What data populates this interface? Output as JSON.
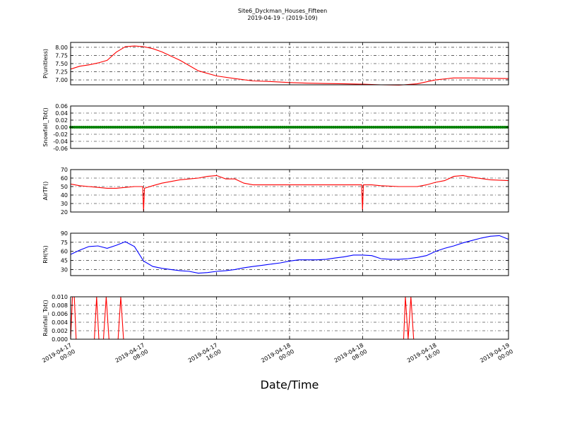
{
  "figure": {
    "title": "Site6_Dyckman_Houses_Fifteen",
    "subtitle": "2019-04-19 - (2019-109)",
    "xlabel": "Date/Time"
  },
  "chart_data": [
    {
      "type": "line",
      "ylabel": "P(unitless)",
      "ylim": [
        6.85,
        8.15
      ],
      "yticks": [
        "7.00",
        "7.25",
        "7.50",
        "7.75",
        "8.00"
      ],
      "ytick_values": [
        7.0,
        7.25,
        7.5,
        7.75,
        8.0
      ],
      "color": "#ff0000",
      "grid": true,
      "series": [
        {
          "x": [
            0,
            1,
            2,
            3,
            4,
            5,
            6,
            7,
            8,
            9,
            10,
            12,
            14,
            16,
            18,
            20,
            22,
            24,
            26,
            28,
            30,
            32,
            34,
            36,
            38,
            40,
            42,
            44,
            46,
            48
          ],
          "y": [
            7.33,
            7.42,
            7.46,
            7.52,
            7.6,
            7.85,
            8.02,
            8.04,
            8.02,
            7.96,
            7.86,
            7.6,
            7.28,
            7.12,
            7.04,
            6.97,
            6.95,
            6.92,
            6.9,
            6.89,
            6.88,
            6.87,
            6.85,
            6.84,
            6.88,
            7.0,
            7.06,
            7.06,
            7.05,
            7.04
          ]
        }
      ]
    },
    {
      "type": "scatter",
      "ylabel": "Snowfall_Tot()",
      "ylim": [
        -0.06,
        0.06
      ],
      "yticks": [
        "0.06",
        "0.04",
        "0.02",
        "0.00",
        "-0.02",
        "-0.04",
        "-0.06"
      ],
      "ytick_values": [
        0.06,
        0.04,
        0.02,
        0.0,
        -0.02,
        -0.04,
        -0.06
      ],
      "color": "#008000",
      "grid": true,
      "series": [
        {
          "x": [
            0,
            48
          ],
          "y": [
            0.0,
            0.0
          ],
          "constant": 0.0
        }
      ]
    },
    {
      "type": "line",
      "ylabel": "AirTF()",
      "ylim": [
        20,
        70
      ],
      "yticks": [
        "70",
        "60",
        "50",
        "40",
        "30",
        "20"
      ],
      "ytick_values": [
        70,
        60,
        50,
        40,
        30,
        20
      ],
      "color": "#ff0000",
      "grid": true,
      "series": [
        {
          "x": [
            0,
            1,
            2,
            3,
            4,
            5,
            6,
            7,
            7.9,
            8.0,
            8.1,
            9,
            10,
            11,
            12,
            13,
            14,
            15,
            16,
            17,
            18,
            19,
            20,
            22,
            24,
            26,
            28,
            30,
            31.9,
            32.0,
            32.1,
            33,
            34,
            36,
            38,
            39,
            40,
            41,
            42,
            43,
            44,
            46,
            48
          ],
          "y": [
            53,
            51,
            50,
            49,
            48,
            48,
            49,
            50,
            50,
            21,
            48,
            51,
            54,
            56,
            58,
            59,
            60,
            62,
            63,
            59,
            59,
            54,
            52,
            52,
            52,
            52,
            52,
            52,
            52,
            22,
            52,
            52,
            51,
            50,
            50,
            52,
            55,
            57,
            62,
            63,
            61,
            58,
            57
          ]
        }
      ]
    },
    {
      "type": "line",
      "ylabel": "RH(%)",
      "ylim": [
        20,
        90
      ],
      "yticks": [
        "90",
        "75",
        "60",
        "45",
        "30"
      ],
      "ytick_values": [
        90,
        75,
        60,
        45,
        30
      ],
      "color": "#0000ff",
      "grid": true,
      "series": [
        {
          "x": [
            0,
            1,
            2,
            3,
            4,
            5,
            6,
            7,
            8,
            9,
            10,
            11,
            12,
            13,
            14,
            15,
            16,
            17,
            18,
            19,
            20,
            21,
            22,
            23,
            24,
            25,
            26,
            27,
            28,
            29,
            30,
            31,
            32,
            33,
            34,
            35,
            36,
            37,
            38,
            39,
            40,
            41,
            42,
            43,
            44,
            45,
            46,
            47,
            48
          ],
          "y": [
            55,
            62,
            68,
            69,
            65,
            70,
            76,
            68,
            44,
            35,
            32,
            30,
            28,
            27,
            24,
            25,
            27,
            28,
            30,
            33,
            35,
            37,
            39,
            41,
            44,
            46,
            46,
            46,
            47,
            49,
            51,
            54,
            54,
            53,
            48,
            47,
            47,
            48,
            50,
            53,
            60,
            65,
            69,
            74,
            78,
            82,
            85,
            86,
            80
          ]
        }
      ]
    },
    {
      "type": "line",
      "ylabel": "Rainfall_Tot()",
      "ylim": [
        0.0,
        0.01
      ],
      "yticks": [
        "0.010",
        "0.008",
        "0.006",
        "0.004",
        "0.002",
        "0.000"
      ],
      "ytick_values": [
        0.01,
        0.008,
        0.006,
        0.004,
        0.002,
        0.0
      ],
      "color": "#ff0000",
      "grid": true,
      "series": [
        {
          "x": [
            0,
            0.2,
            0.4,
            0.6,
            2.6,
            2.85,
            3.1,
            3.6,
            3.9,
            4.2,
            5.2,
            5.5,
            5.8,
            36.5,
            36.7,
            37.0,
            37.3,
            37.6,
            48
          ],
          "y": [
            0.0,
            0.01,
            0.01,
            0.0,
            0.0,
            0.01,
            0.0,
            0.0,
            0.01,
            0.0,
            0.0,
            0.01,
            0.0,
            0.0,
            0.01,
            0.0,
            0.01,
            0.0,
            0.0
          ]
        }
      ]
    }
  ],
  "x_axis": {
    "range_hours": [
      0,
      48
    ],
    "tick_hours": [
      0,
      8,
      16,
      24,
      32,
      40,
      48
    ],
    "tick_labels": [
      [
        "2019-04-17",
        "00:00"
      ],
      [
        "2019-04-17",
        "08:00"
      ],
      [
        "2019-04-17",
        "16:00"
      ],
      [
        "2019-04-18",
        "00:00"
      ],
      [
        "2019-04-18",
        "08:00"
      ],
      [
        "2019-04-18",
        "16:00"
      ],
      [
        "2019-04-19",
        "00:00"
      ]
    ]
  }
}
